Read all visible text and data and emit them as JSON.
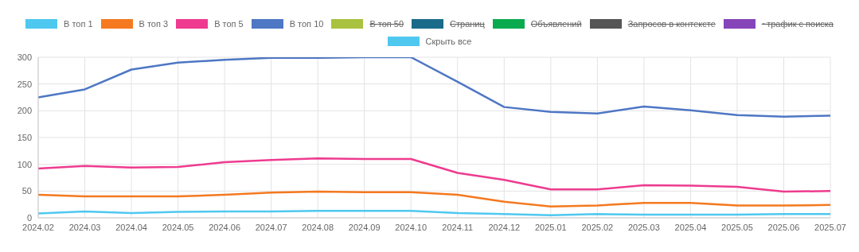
{
  "chart_data": {
    "type": "line",
    "categories": [
      "2024.02",
      "2024.03",
      "2024.04",
      "2024.05",
      "2024.06",
      "2024.07",
      "2024.08",
      "2024.09",
      "2024.10",
      "2024.11",
      "2024.12",
      "2025.01",
      "2025.02",
      "2025.03",
      "2025.04",
      "2025.05",
      "2025.06",
      "2025.07"
    ],
    "series": [
      {
        "name": "В топ 1",
        "color": "#4fc8f0",
        "values": [
          8,
          12,
          9,
          11,
          12,
          12,
          13,
          13,
          13,
          9,
          7,
          5,
          7,
          6,
          6,
          6,
          7,
          7
        ]
      },
      {
        "name": "В топ 3",
        "color": "#f47920",
        "values": [
          43,
          40,
          40,
          40,
          43,
          47,
          49,
          48,
          48,
          43,
          30,
          21,
          23,
          28,
          28,
          23,
          23,
          24
        ]
      },
      {
        "name": "В топ 5",
        "color": "#ee3b8f",
        "values": [
          92,
          97,
          94,
          95,
          104,
          108,
          111,
          110,
          110,
          84,
          71,
          53,
          53,
          61,
          60,
          58,
          49,
          50
        ]
      },
      {
        "name": "В топ 10",
        "color": "#4e77c4",
        "values": [
          225,
          240,
          277,
          290,
          295,
          299,
          299,
          300,
          300,
          254,
          207,
          198,
          195,
          208,
          201,
          192,
          189,
          191
        ]
      },
      {
        "name": "В топ 50",
        "color": "#a9c23f",
        "values": [
          null,
          null,
          null,
          null,
          null,
          null,
          null,
          null,
          null,
          null,
          null,
          null,
          null,
          null,
          null,
          null,
          null,
          null
        ]
      },
      {
        "name": "Страниц",
        "color": "#1a6a8a",
        "values": [
          null,
          null,
          null,
          null,
          null,
          null,
          null,
          null,
          null,
          null,
          null,
          null,
          null,
          null,
          null,
          null,
          null,
          null
        ]
      },
      {
        "name": "Объявлений",
        "color": "#0aab4f",
        "values": [
          null,
          null,
          null,
          null,
          null,
          null,
          null,
          null,
          null,
          null,
          null,
          null,
          null,
          null,
          null,
          null,
          null,
          null
        ]
      },
      {
        "name": "Запросов в контексте",
        "color": "#555555",
        "values": [
          null,
          null,
          null,
          null,
          null,
          null,
          null,
          null,
          null,
          null,
          null,
          null,
          null,
          null,
          null,
          null,
          null,
          null
        ]
      },
      {
        "name": "~трафик с поиска",
        "color": "#8645b8",
        "values": [
          null,
          null,
          null,
          null,
          null,
          null,
          null,
          null,
          null,
          null,
          null,
          null,
          null,
          null,
          null,
          null,
          null,
          null
        ]
      }
    ],
    "annotations": [
      "Скрыть все"
    ],
    "ylim": [
      0,
      300
    ],
    "yticks": [
      0,
      50,
      100,
      150,
      200,
      250,
      300
    ],
    "grid": true,
    "legend": "top",
    "marker": "none",
    "line_style": "solid"
  }
}
